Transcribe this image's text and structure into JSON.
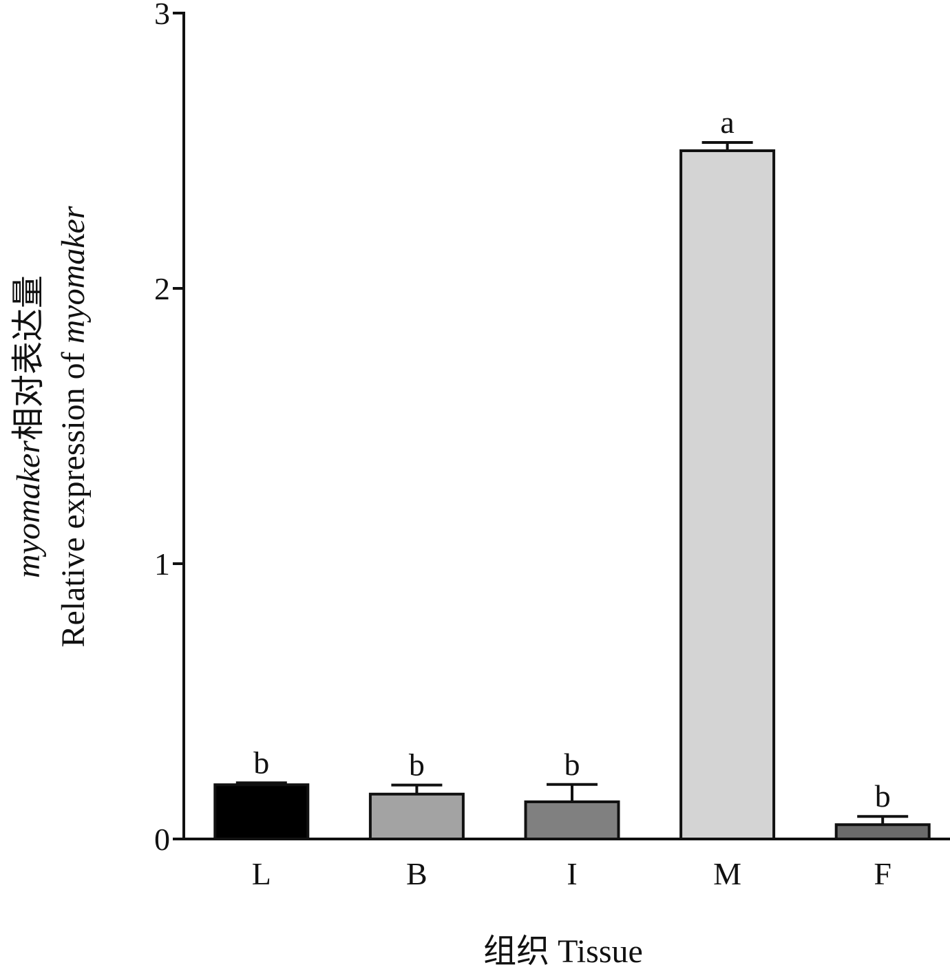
{
  "chart_data": {
    "type": "bar",
    "categories": [
      "L",
      "B",
      "I",
      "M",
      "F"
    ],
    "values": [
      0.197,
      0.163,
      0.135,
      2.5,
      0.052
    ],
    "errors": [
      0.007,
      0.033,
      0.063,
      0.03,
      0.03
    ],
    "significance": [
      "b",
      "b",
      "b",
      "a",
      "b"
    ],
    "colors": [
      "#000000",
      "#a3a3a3",
      "#808080",
      "#d4d4d4",
      "#6b6b6b"
    ],
    "ylim": [
      0,
      3
    ],
    "yticks": [
      "0",
      "1",
      "2",
      "3"
    ],
    "xlabel": "组织 Tissue",
    "ylabel_line1_italic": "myomaker",
    "ylabel_line1_rest": "相对表达量",
    "ylabel_line2_plain": "Relative expression of ",
    "ylabel_line2_italic": "myomaker",
    "grid": false,
    "legend": "none"
  }
}
